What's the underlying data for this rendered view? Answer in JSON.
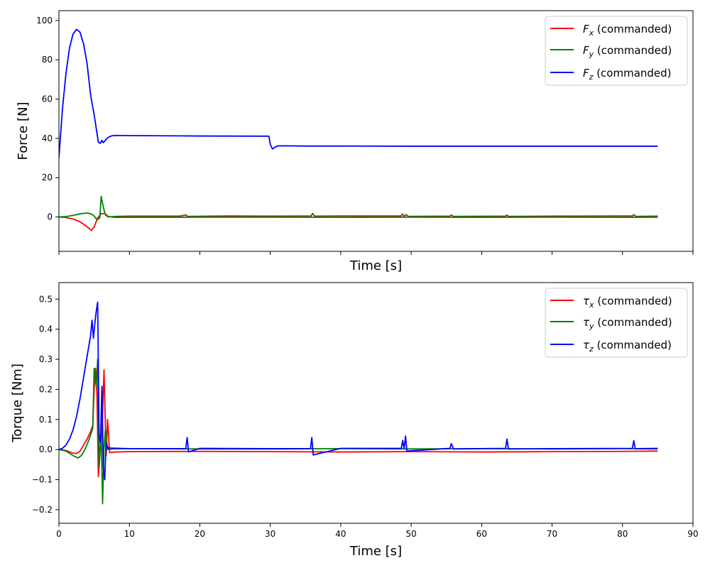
{
  "chart_data": [
    {
      "type": "line",
      "xlabel": "Time [s]",
      "ylabel": "Force [N]",
      "xlim": [
        0,
        90
      ],
      "ylim": [
        -17.5,
        105
      ],
      "x_ticks": [
        0,
        10,
        20,
        30,
        40,
        50,
        60,
        70,
        80,
        90
      ],
      "x_tick_labels_shown": false,
      "y_ticks": [
        0,
        20,
        40,
        60,
        80,
        100
      ],
      "grid": false,
      "legend_position": "top-right",
      "series": [
        {
          "name_symbol": "F",
          "name_subscript": "x",
          "name_suffix": " (commanded)",
          "color": "#ff0000",
          "points": [
            [
              0,
              0
            ],
            [
              1,
              -0.3
            ],
            [
              2,
              -1
            ],
            [
              3,
              -2.5
            ],
            [
              4,
              -5
            ],
            [
              4.6,
              -6.8
            ],
            [
              5,
              -5
            ],
            [
              5.5,
              -0.5
            ],
            [
              6,
              1.6
            ],
            [
              6.5,
              1.8
            ],
            [
              7,
              0.2
            ],
            [
              8,
              -0.2
            ],
            [
              10,
              -0.2
            ],
            [
              20,
              -0.1
            ],
            [
              30,
              -0.1
            ],
            [
              40,
              -0.2
            ],
            [
              50,
              -0.1
            ],
            [
              60,
              -0.2
            ],
            [
              70,
              -0.1
            ],
            [
              80,
              -0.2
            ],
            [
              85,
              -0.1
            ]
          ]
        },
        {
          "name_symbol": "F",
          "name_subscript": "y",
          "name_suffix": " (commanded)",
          "color": "#008000",
          "points": [
            [
              0,
              0
            ],
            [
              1,
              0.2
            ],
            [
              2,
              0.8
            ],
            [
              3,
              1.6
            ],
            [
              4,
              2
            ],
            [
              4.6,
              1.5
            ],
            [
              5,
              0.5
            ],
            [
              5.4,
              -1.5
            ],
            [
              5.8,
              -0.5
            ],
            [
              6,
              10.5
            ],
            [
              6.3,
              5
            ],
            [
              6.6,
              1
            ],
            [
              7,
              0
            ],
            [
              8,
              0.3
            ],
            [
              10,
              0.4
            ],
            [
              17,
              0.4
            ],
            [
              18,
              1
            ],
            [
              18.3,
              0.3
            ],
            [
              24,
              0.5
            ],
            [
              30,
              0.4
            ],
            [
              35.8,
              0.5
            ],
            [
              36,
              1.8
            ],
            [
              36.3,
              0.4
            ],
            [
              40,
              0.5
            ],
            [
              48.6,
              0.5
            ],
            [
              48.8,
              1.5
            ],
            [
              49,
              0.3
            ],
            [
              49.3,
              1.2
            ],
            [
              49.6,
              0.3
            ],
            [
              55.5,
              0.4
            ],
            [
              55.7,
              1
            ],
            [
              56,
              0.3
            ],
            [
              63.4,
              0.4
            ],
            [
              63.6,
              1
            ],
            [
              63.8,
              0.3
            ],
            [
              70,
              0.4
            ],
            [
              81.4,
              0.5
            ],
            [
              81.6,
              1.2
            ],
            [
              81.9,
              0.3
            ],
            [
              85,
              0.4
            ]
          ]
        },
        {
          "name_symbol": "F",
          "name_subscript": "z",
          "name_suffix": " (commanded)",
          "color": "#0000ff",
          "points": [
            [
              0,
              30
            ],
            [
              0.5,
              55
            ],
            [
              1,
              73
            ],
            [
              1.5,
              86
            ],
            [
              2,
              93
            ],
            [
              2.5,
              95.5
            ],
            [
              3,
              94
            ],
            [
              3.5,
              88
            ],
            [
              4,
              78
            ],
            [
              4.5,
              62
            ],
            [
              5,
              52
            ],
            [
              5.3,
              45
            ],
            [
              5.6,
              38
            ],
            [
              5.9,
              37.5
            ],
            [
              6.1,
              39
            ],
            [
              6.3,
              37.8
            ],
            [
              6.7,
              39.5
            ],
            [
              7,
              40.5
            ],
            [
              7.5,
              41.3
            ],
            [
              8,
              41.5
            ],
            [
              10,
              41.4
            ],
            [
              20,
              41.2
            ],
            [
              29.8,
              41.1
            ],
            [
              30,
              37
            ],
            [
              30.3,
              34.6
            ],
            [
              30.6,
              35.3
            ],
            [
              31,
              36.1
            ],
            [
              31.5,
              36.2
            ],
            [
              35,
              36.1
            ],
            [
              40,
              36.1
            ],
            [
              50,
              36
            ],
            [
              60,
              36
            ],
            [
              70,
              36
            ],
            [
              80,
              36
            ],
            [
              85,
              36
            ]
          ]
        }
      ]
    },
    {
      "type": "line",
      "xlabel": "Time [s]",
      "ylabel": "Torque [Nm]",
      "xlim": [
        0,
        90
      ],
      "ylim": [
        -0.245,
        0.555
      ],
      "x_ticks": [
        0,
        10,
        20,
        30,
        40,
        50,
        60,
        70,
        80,
        90
      ],
      "x_tick_labels_shown": true,
      "y_ticks": [
        -0.2,
        -0.1,
        0.0,
        0.1,
        0.2,
        0.3,
        0.4,
        0.5
      ],
      "y_tick_labels": [
        "−0.2",
        "−0.1",
        "0.0",
        "0.1",
        "0.2",
        "0.3",
        "0.4",
        "0.5"
      ],
      "grid": false,
      "legend_position": "top-right",
      "series": [
        {
          "name_symbol": "τ",
          "name_subscript": "x",
          "name_suffix": " (commanded)",
          "color": "#ff0000",
          "points": [
            [
              0,
              0
            ],
            [
              1,
              -0.003
            ],
            [
              2,
              -0.012
            ],
            [
              2.5,
              -0.013
            ],
            [
              3,
              -0.005
            ],
            [
              3.5,
              0.015
            ],
            [
              4,
              0.035
            ],
            [
              4.5,
              0.06
            ],
            [
              4.8,
              0.08
            ],
            [
              5,
              0.2
            ],
            [
              5.2,
              0.27
            ],
            [
              5.4,
              0.18
            ],
            [
              5.6,
              -0.09
            ],
            [
              5.8,
              0
            ],
            [
              6.1,
              0.05
            ],
            [
              6.4,
              0.265
            ],
            [
              6.7,
              -0.02
            ],
            [
              6.9,
              0.1
            ],
            [
              7.2,
              -0.01
            ],
            [
              8,
              -0.008
            ],
            [
              10,
              -0.007
            ],
            [
              20,
              -0.006
            ],
            [
              30,
              -0.007
            ],
            [
              40,
              -0.008
            ],
            [
              50,
              -0.007
            ],
            [
              60,
              -0.008
            ],
            [
              70,
              -0.007
            ],
            [
              80,
              -0.006
            ],
            [
              85,
              -0.005
            ]
          ]
        },
        {
          "name_symbol": "τ",
          "name_subscript": "y",
          "name_suffix": " (commanded)",
          "color": "#008000",
          "points": [
            [
              0,
              0
            ],
            [
              1,
              -0.005
            ],
            [
              2,
              -0.02
            ],
            [
              2.7,
              -0.028
            ],
            [
              3.2,
              -0.02
            ],
            [
              3.8,
              0.005
            ],
            [
              4.3,
              0.035
            ],
            [
              4.8,
              0.07
            ],
            [
              5,
              0.27
            ],
            [
              5.3,
              0.21
            ],
            [
              5.5,
              0.3
            ],
            [
              5.7,
              -0.06
            ],
            [
              6,
              0.05
            ],
            [
              6.2,
              -0.18
            ],
            [
              6.4,
              0
            ],
            [
              6.6,
              0.07
            ],
            [
              6.9,
              0
            ],
            [
              7.5,
              0.002
            ],
            [
              10,
              0.003
            ],
            [
              20,
              0.002
            ],
            [
              30,
              0.002
            ],
            [
              40,
              0.003
            ],
            [
              50,
              0.002
            ],
            [
              60,
              0.003
            ],
            [
              70,
              0.002
            ],
            [
              80,
              0.003
            ],
            [
              85,
              0.002
            ]
          ]
        },
        {
          "name_symbol": "τ",
          "name_subscript": "z",
          "name_suffix": " (commanded)",
          "color": "#0000ff",
          "points": [
            [
              0,
              0
            ],
            [
              0.5,
              0.004
            ],
            [
              1,
              0.015
            ],
            [
              1.5,
              0.035
            ],
            [
              2,
              0.065
            ],
            [
              2.5,
              0.11
            ],
            [
              3,
              0.17
            ],
            [
              3.5,
              0.24
            ],
            [
              4,
              0.31
            ],
            [
              4.5,
              0.38
            ],
            [
              4.7,
              0.43
            ],
            [
              4.9,
              0.37
            ],
            [
              5.1,
              0.42
            ],
            [
              5.3,
              0.46
            ],
            [
              5.5,
              0.49
            ],
            [
              5.7,
              0.05
            ],
            [
              5.9,
              0.02
            ],
            [
              6.1,
              0.21
            ],
            [
              6.3,
              -0.06
            ],
            [
              6.5,
              -0.1
            ],
            [
              6.7,
              0.02
            ],
            [
              7,
              0.005
            ],
            [
              10,
              0.003
            ],
            [
              18,
              0.003
            ],
            [
              18.2,
              0.04
            ],
            [
              18.4,
              -0.008
            ],
            [
              20,
              0.004
            ],
            [
              30,
              0.003
            ],
            [
              35.7,
              0.003
            ],
            [
              35.9,
              0.04
            ],
            [
              36.1,
              -0.018
            ],
            [
              40,
              0.004
            ],
            [
              48.6,
              0.004
            ],
            [
              48.8,
              0.03
            ],
            [
              49,
              0.003
            ],
            [
              49.2,
              0.045
            ],
            [
              49.4,
              -0.005
            ],
            [
              55.5,
              0.004
            ],
            [
              55.7,
              0.02
            ],
            [
              56,
              0.002
            ],
            [
              63.4,
              0.004
            ],
            [
              63.6,
              0.035
            ],
            [
              63.8,
              0.002
            ],
            [
              70,
              0.003
            ],
            [
              81.4,
              0.004
            ],
            [
              81.6,
              0.03
            ],
            [
              81.8,
              0.003
            ],
            [
              85,
              0.004
            ]
          ]
        }
      ]
    }
  ]
}
